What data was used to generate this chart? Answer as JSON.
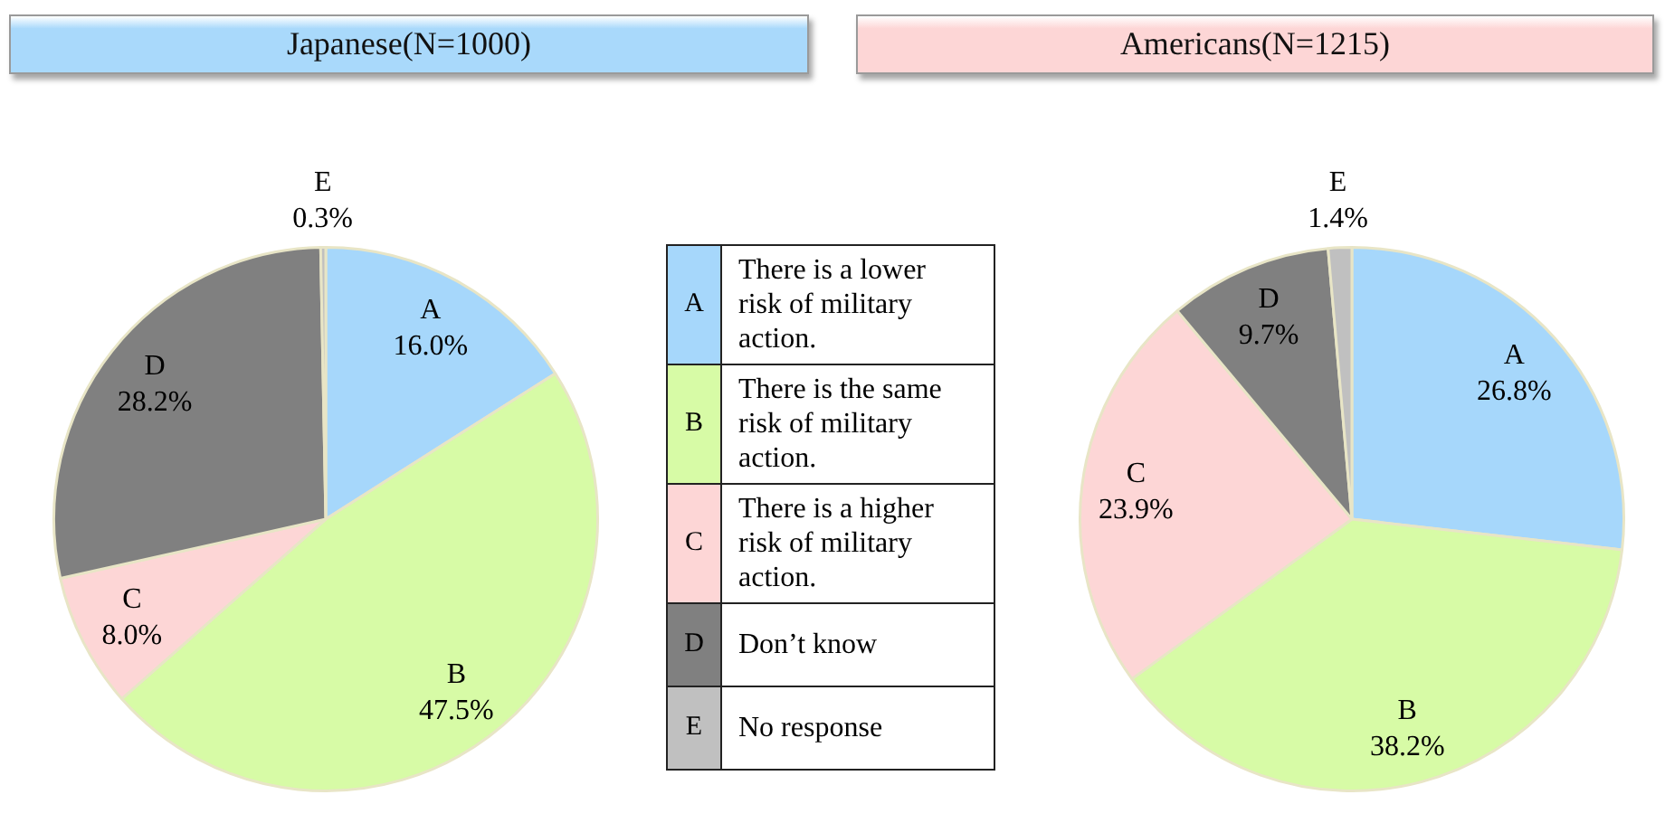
{
  "chart_data": [
    {
      "type": "pie",
      "title": "Japanese(N=1000)",
      "categories": [
        "A",
        "B",
        "C",
        "D",
        "E"
      ],
      "values": [
        16.0,
        47.5,
        8.0,
        28.2,
        0.3
      ],
      "colors": [
        "#a6d7fb",
        "#d7fba6",
        "#fdd6d6",
        "#808080",
        "#c0c0c0"
      ],
      "value_labels": [
        "16.0%",
        "47.5%",
        "8.0%",
        "28.2%",
        "0.3%"
      ]
    },
    {
      "type": "other",
      "categories": [
        "A",
        "B",
        "C",
        "D",
        "E"
      ],
      "colors": [
        "#a6d7fb",
        "#d7fba6",
        "#fdd6d6",
        "#808080",
        "#c0c0c0"
      ],
      "annotations": [
        "There is a lower risk of military action.",
        "There is the same risk of military action.",
        "There is a higher risk of military action.",
        "Don’t know",
        "No response"
      ]
    },
    {
      "type": "pie",
      "title": "Americans(N=1215)",
      "categories": [
        "A",
        "B",
        "C",
        "D",
        "E"
      ],
      "values": [
        26.8,
        38.2,
        23.9,
        9.7,
        1.4
      ],
      "colors": [
        "#a6d7fb",
        "#d7fba6",
        "#fdd6d6",
        "#808080",
        "#c0c0c0"
      ],
      "value_labels": [
        "26.8%",
        "38.2%",
        "23.9%",
        "9.7%",
        "1.4%"
      ]
    }
  ]
}
